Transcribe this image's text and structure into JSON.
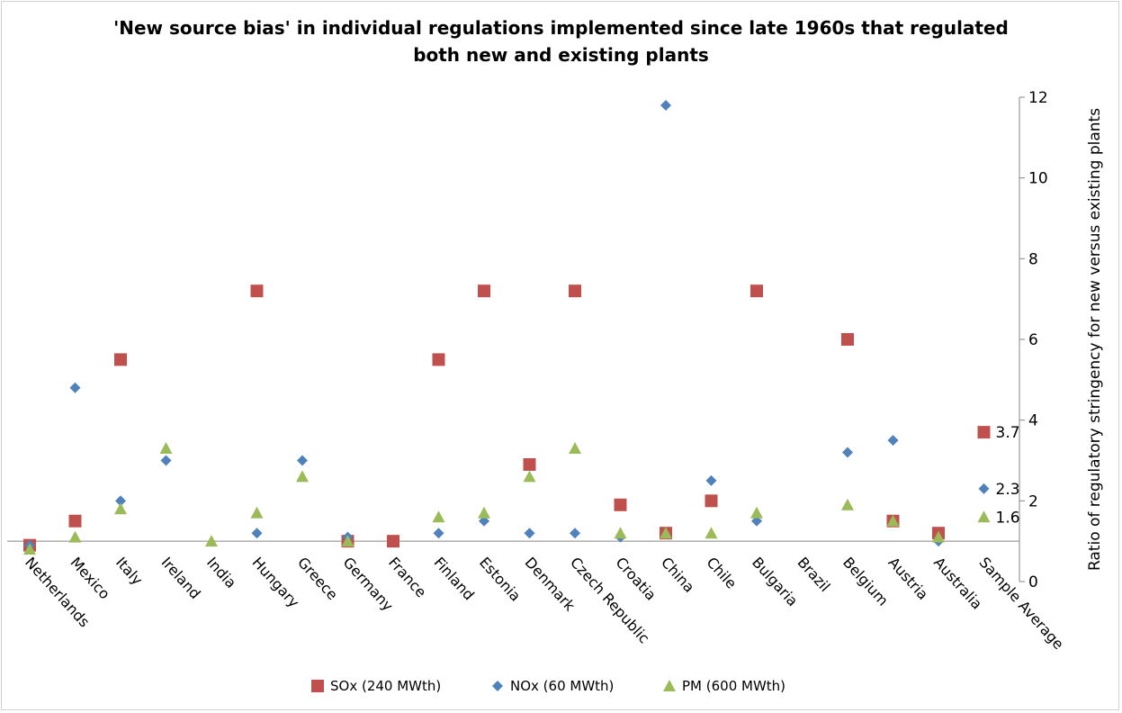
{
  "chart_data": {
    "type": "scatter",
    "title": "'New source bias' in individual regulations implemented since late 1960s that regulated\nboth new and existing plants",
    "ylabel": "Ratio of regulatory stringency for new versus existing plants",
    "xlabel": "",
    "ylim": [
      0,
      12
    ],
    "yticks": [
      0,
      2,
      4,
      6,
      8,
      10,
      12
    ],
    "y_axis_side": "right",
    "grid": false,
    "legend_position": "bottom",
    "categories": [
      "Netherlands",
      "Mexico",
      "Italy",
      "Ireland",
      "India",
      "Hungary",
      "Greece",
      "Germany",
      "France",
      "Finland",
      "Estonia",
      "Denmark",
      "Czech Republic",
      "Croatia",
      "China",
      "Chile",
      "Bulgaria",
      "Brazil",
      "Belgium",
      "Austria",
      "Australia",
      "Sample Average"
    ],
    "series": [
      {
        "name": "SOx (240 MWth)",
        "marker": "square",
        "color": "#c0504d",
        "values": [
          0.9,
          1.5,
          5.5,
          null,
          null,
          7.2,
          null,
          1.0,
          1.0,
          5.5,
          7.2,
          2.9,
          7.2,
          1.9,
          1.2,
          2.0,
          7.2,
          null,
          6.0,
          1.5,
          1.2,
          3.7
        ]
      },
      {
        "name": "NOx (60 MWth)",
        "marker": "diamond",
        "color": "#4f81bd",
        "values": [
          0.9,
          4.8,
          2.0,
          3.0,
          null,
          1.2,
          3.0,
          1.1,
          null,
          1.2,
          1.5,
          1.2,
          1.2,
          1.1,
          11.8,
          2.5,
          1.5,
          null,
          3.2,
          3.5,
          1.0,
          2.3
        ]
      },
      {
        "name": "PM (600 MWth)",
        "marker": "triangle",
        "color": "#9bbb59",
        "values": [
          0.8,
          1.1,
          1.8,
          3.3,
          1.0,
          1.7,
          2.6,
          1.0,
          null,
          1.6,
          1.7,
          2.6,
          3.3,
          1.2,
          1.2,
          1.2,
          1.7,
          null,
          1.9,
          1.5,
          1.1,
          1.6
        ]
      }
    ],
    "annotations": [
      {
        "series": "SOx (240 MWth)",
        "category": "Sample Average",
        "text": "3.7"
      },
      {
        "series": "NOx (60 MWth)",
        "category": "Sample Average",
        "text": "2.3"
      },
      {
        "series": "PM (600 MWth)",
        "category": "Sample Average",
        "text": "1.6"
      }
    ]
  }
}
